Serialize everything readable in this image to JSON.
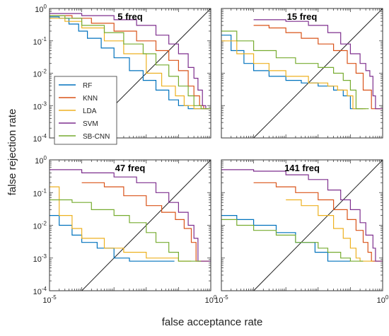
{
  "figure": {
    "xlabel": "false acceptance rate",
    "ylabel": "false rejection rate"
  },
  "legend": {
    "placement": "inside top-left panel, lower-left",
    "entries": [
      {
        "name": "RF",
        "color": "#0072BD"
      },
      {
        "name": "KNN",
        "color": "#D95319"
      },
      {
        "name": "LDA",
        "color": "#EDB120"
      },
      {
        "name": "SVM",
        "color": "#7E2F8E"
      },
      {
        "name": "SB-CNN",
        "color": "#77AC30"
      }
    ]
  },
  "chart_data": [
    {
      "type": "line",
      "title": "5 freq",
      "xscale": "log",
      "yscale": "log",
      "xlim": [
        1e-05,
        1
      ],
      "ylim": [
        0.0001,
        1
      ],
      "xticklabels": [],
      "yticklabels": [
        "10^{0}",
        "10^{-1}",
        "10^{-2}",
        "10^{-3}",
        "10^{-4}"
      ],
      "diagonal": true,
      "series": [
        {
          "name": "RF",
          "color": "#0072BD",
          "x": [
            1e-05,
            2e-05,
            4e-05,
            8e-05,
            0.00015,
            0.0004,
            0.001,
            0.003,
            0.008,
            0.02,
            0.05,
            0.1,
            0.2,
            0.35,
            0.55
          ],
          "y": [
            0.55,
            0.5,
            0.33,
            0.2,
            0.12,
            0.06,
            0.03,
            0.012,
            0.006,
            0.003,
            0.0015,
            0.001,
            0.0008,
            0.0008,
            0.0008
          ]
        },
        {
          "name": "KNN",
          "color": "#D95319",
          "x": [
            1e-05,
            5e-05,
            0.0002,
            0.001,
            0.005,
            0.02,
            0.05,
            0.1,
            0.2,
            0.3,
            0.45,
            0.6
          ],
          "y": [
            0.6,
            0.5,
            0.35,
            0.2,
            0.1,
            0.05,
            0.025,
            0.012,
            0.004,
            0.002,
            0.001,
            0.0008
          ]
        },
        {
          "name": "LDA",
          "color": "#EDB120",
          "x": [
            1e-05,
            3e-05,
            0.0001,
            0.0005,
            0.002,
            0.01,
            0.03,
            0.08,
            0.15,
            0.3
          ],
          "y": [
            0.5,
            0.4,
            0.25,
            0.1,
            0.04,
            0.01,
            0.004,
            0.002,
            0.001,
            0.0008
          ]
        },
        {
          "name": "SVM",
          "color": "#7E2F8E",
          "x": [
            1e-05,
            0.0001,
            0.001,
            0.005,
            0.02,
            0.05,
            0.1,
            0.2,
            0.3,
            0.4,
            0.55,
            0.7
          ],
          "y": [
            0.7,
            0.6,
            0.45,
            0.3,
            0.15,
            0.08,
            0.04,
            0.015,
            0.007,
            0.003,
            0.001,
            0.0008
          ]
        },
        {
          "name": "SB-CNN",
          "color": "#77AC30",
          "x": [
            1e-05,
            3e-05,
            0.0001,
            0.0005,
            0.002,
            0.008,
            0.02,
            0.05,
            0.1,
            0.2,
            0.3,
            0.5
          ],
          "y": [
            0.6,
            0.5,
            0.3,
            0.18,
            0.08,
            0.04,
            0.018,
            0.008,
            0.004,
            0.002,
            0.001,
            0.0008
          ]
        }
      ]
    },
    {
      "type": "line",
      "title": "15 freq",
      "xscale": "log",
      "yscale": "log",
      "xlim": [
        1e-05,
        1
      ],
      "ylim": [
        0.0001,
        1
      ],
      "xticklabels": [],
      "yticklabels": [],
      "diagonal": true,
      "series": [
        {
          "name": "RF",
          "color": "#0072BD",
          "x": [
            1e-05,
            2e-05,
            5e-05,
            0.0001,
            0.0003,
            0.001,
            0.003,
            0.01,
            0.03,
            0.06,
            0.1
          ],
          "y": [
            0.15,
            0.05,
            0.02,
            0.012,
            0.008,
            0.006,
            0.005,
            0.004,
            0.003,
            0.002,
            0.0008
          ]
        },
        {
          "name": "KNN",
          "color": "#D95319",
          "x": [
            0.0001,
            0.0003,
            0.001,
            0.003,
            0.01,
            0.03,
            0.08,
            0.15,
            0.25,
            0.45
          ],
          "y": [
            0.3,
            0.25,
            0.18,
            0.12,
            0.08,
            0.05,
            0.02,
            0.01,
            0.003,
            0.0008
          ]
        },
        {
          "name": "LDA",
          "color": "#EDB120",
          "x": [
            1e-05,
            3e-05,
            0.0001,
            0.0003,
            0.001,
            0.005,
            0.02,
            0.04,
            0.08,
            0.12
          ],
          "y": [
            0.1,
            0.04,
            0.02,
            0.012,
            0.008,
            0.005,
            0.004,
            0.003,
            0.002,
            0.0008
          ]
        },
        {
          "name": "SVM",
          "color": "#7E2F8E",
          "x": [
            0.0001,
            0.001,
            0.005,
            0.02,
            0.05,
            0.1,
            0.2,
            0.3,
            0.4,
            0.5,
            0.6
          ],
          "y": [
            0.45,
            0.4,
            0.3,
            0.18,
            0.08,
            0.04,
            0.02,
            0.012,
            0.008,
            0.002,
            0.0008
          ]
        },
        {
          "name": "SB-CNN",
          "color": "#77AC30",
          "x": [
            1e-05,
            3e-05,
            0.0001,
            0.0005,
            0.002,
            0.01,
            0.03,
            0.06,
            0.1,
            0.15
          ],
          "y": [
            0.2,
            0.1,
            0.05,
            0.03,
            0.02,
            0.015,
            0.01,
            0.006,
            0.003,
            0.0008
          ]
        }
      ]
    },
    {
      "type": "line",
      "title": "47 freq",
      "xscale": "log",
      "yscale": "log",
      "xlim": [
        1e-05,
        1
      ],
      "ylim": [
        0.0001,
        1
      ],
      "xticklabels": [
        "10^{-5}",
        "10^{0}"
      ],
      "yticklabels": [
        "10^{0}",
        "10^{-1}",
        "10^{-2}",
        "10^{-3}",
        "10^{-4}"
      ],
      "diagonal": true,
      "series": [
        {
          "name": "RF",
          "color": "#0072BD",
          "x": [
            1e-05,
            2e-05,
            5e-05,
            0.0001,
            0.0003,
            0.001,
            0.003,
            0.01,
            0.03
          ],
          "y": [
            0.02,
            0.01,
            0.005,
            0.003,
            0.002,
            0.001,
            0.0008,
            0.0008,
            0.0008
          ]
        },
        {
          "name": "KNN",
          "color": "#D95319",
          "x": [
            0.0001,
            0.0005,
            0.002,
            0.01,
            0.03,
            0.08,
            0.15,
            0.25,
            0.35
          ],
          "y": [
            0.2,
            0.15,
            0.08,
            0.04,
            0.025,
            0.015,
            0.008,
            0.003,
            0.0008
          ]
        },
        {
          "name": "LDA",
          "color": "#EDB120",
          "x": [
            1e-05,
            2e-05,
            5e-05,
            0.0001,
            0.0005,
            0.002,
            0.01,
            0.05,
            0.1
          ],
          "y": [
            0.15,
            0.02,
            0.008,
            0.004,
            0.002,
            0.0015,
            0.001,
            0.001,
            0.0008
          ]
        },
        {
          "name": "SVM",
          "color": "#7E2F8E",
          "x": [
            1e-05,
            0.0001,
            0.001,
            0.005,
            0.02,
            0.05,
            0.1,
            0.2,
            0.3,
            0.4
          ],
          "y": [
            0.5,
            0.4,
            0.3,
            0.2,
            0.1,
            0.05,
            0.025,
            0.01,
            0.004,
            0.0008
          ]
        },
        {
          "name": "SB-CNN",
          "color": "#77AC30",
          "x": [
            1e-05,
            5e-05,
            0.0002,
            0.001,
            0.003,
            0.01,
            0.02,
            0.05,
            0.1,
            0.2
          ],
          "y": [
            0.06,
            0.05,
            0.03,
            0.02,
            0.012,
            0.006,
            0.003,
            0.0015,
            0.0008,
            0.0008
          ]
        }
      ]
    },
    {
      "type": "line",
      "title": "141 freq",
      "xscale": "log",
      "yscale": "log",
      "xlim": [
        1e-05,
        1
      ],
      "ylim": [
        0.0001,
        1
      ],
      "xticklabels": [
        "10^{-5}",
        "10^{0}"
      ],
      "yticklabels": [],
      "diagonal": true,
      "series": [
        {
          "name": "RF",
          "color": "#0072BD",
          "x": [
            1e-05,
            3e-05,
            0.0001,
            0.0005,
            0.002,
            0.008,
            0.02,
            0.04
          ],
          "y": [
            0.02,
            0.015,
            0.01,
            0.006,
            0.003,
            0.0015,
            0.0008,
            0.0008
          ]
        },
        {
          "name": "KNN",
          "color": "#D95319",
          "x": [
            0.0001,
            0.0005,
            0.002,
            0.01,
            0.03,
            0.08,
            0.15,
            0.25,
            0.35,
            0.45
          ],
          "y": [
            0.2,
            0.15,
            0.1,
            0.06,
            0.03,
            0.015,
            0.007,
            0.003,
            0.0015,
            0.0008
          ]
        },
        {
          "name": "LDA",
          "color": "#EDB120",
          "x": [
            0.001,
            0.003,
            0.01,
            0.03,
            0.06,
            0.1,
            0.15,
            0.2
          ],
          "y": [
            0.06,
            0.04,
            0.02,
            0.008,
            0.004,
            0.002,
            0.001,
            0.0008
          ]
        },
        {
          "name": "SVM",
          "color": "#7E2F8E",
          "x": [
            1e-05,
            0.0001,
            0.001,
            0.005,
            0.02,
            0.05,
            0.1,
            0.2,
            0.3,
            0.5,
            0.6
          ],
          "y": [
            0.5,
            0.45,
            0.35,
            0.25,
            0.12,
            0.06,
            0.03,
            0.012,
            0.005,
            0.002,
            0.0008
          ]
        },
        {
          "name": "SB-CNN",
          "color": "#77AC30",
          "x": [
            1e-05,
            3e-05,
            0.0001,
            0.0005,
            0.002,
            0.01,
            0.02,
            0.05,
            0.1
          ],
          "y": [
            0.015,
            0.01,
            0.007,
            0.005,
            0.003,
            0.002,
            0.0015,
            0.001,
            0.0008
          ]
        }
      ]
    }
  ]
}
